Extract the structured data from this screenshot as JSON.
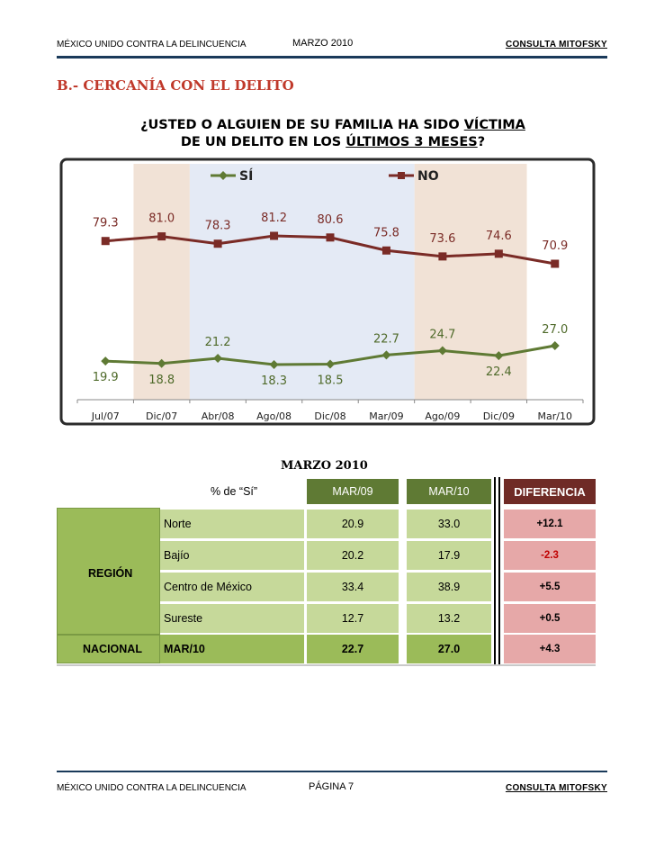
{
  "header": {
    "left": "MÉXICO UNIDO CONTRA LA DELINCUENCIA",
    "center": "MARZO 2010",
    "right": "CONSULTA MITOFSKY"
  },
  "section_title": "B.- CERCANÍA CON EL DELITO",
  "question": {
    "line1_pre": "¿USTED O ALGUIEN DE SU FAMILIA HA SIDO ",
    "line1_u": "VÍCTIMA",
    "line2_pre": "DE UN DELITO EN LOS ",
    "line2_u": "ÚLTIMOS 3 MESES",
    "line2_post": "?"
  },
  "chart_data": {
    "type": "line",
    "categories": [
      "Jul/07",
      "Dic/07",
      "Abr/08",
      "Ago/08",
      "Dic/08",
      "Mar/09",
      "Ago/09",
      "Dic/09",
      "Mar/10"
    ],
    "series": [
      {
        "name": "SÍ",
        "values": [
          19.9,
          18.8,
          21.2,
          18.3,
          18.5,
          22.7,
          24.7,
          22.4,
          27.0
        ],
        "labels": [
          "19.9",
          "18.8",
          "21.2",
          "18.3",
          "18.5",
          "22.7",
          "24.7",
          "22.4",
          "27.0"
        ],
        "color": "#5f7a34"
      },
      {
        "name": "NO",
        "values": [
          79.3,
          81.0,
          78.3,
          81.2,
          80.6,
          75.8,
          73.6,
          74.6,
          70.9
        ],
        "labels": [
          "79.3",
          "81.0",
          "78.3",
          "81.2",
          "80.6",
          "75.8",
          "73.6",
          "74.6",
          "70.9"
        ],
        "color": "#7a2b26"
      }
    ],
    "background_bands": [
      "#f1e2d6",
      "#e4eaf5",
      "#f1e2d6"
    ],
    "legend_position": "top",
    "grid": false
  },
  "table": {
    "title": "MARZO 2010",
    "subtitle": "% de “Sí”",
    "col_headers": [
      "MAR/09",
      "MAR/10",
      "DIFERENCIA"
    ],
    "group_label": "REGIÓN",
    "rows": [
      {
        "label": "Norte",
        "mar09": "20.9",
        "mar10": "33.0",
        "diff": "+12.1"
      },
      {
        "label": "Bajío",
        "mar09": "20.2",
        "mar10": "17.9",
        "diff": "-2.3"
      },
      {
        "label": "Centro de México",
        "mar09": "33.4",
        "mar10": "38.9",
        "diff": "+5.5"
      },
      {
        "label": "Sureste",
        "mar09": "12.7",
        "mar10": "13.2",
        "diff": "+0.5"
      }
    ],
    "national": {
      "label": "NACIONAL",
      "period": "MAR/10",
      "mar09": "22.7",
      "mar10": "27.0",
      "diff": "+4.3"
    }
  },
  "footer": {
    "left": "MÉXICO UNIDO CONTRA LA DELINCUENCIA",
    "center": "PÁGINA 7",
    "right": "CONSULTA MITOFSKY"
  },
  "colors": {
    "header_rule": "#1a3a5a",
    "section_red": "#c0392b",
    "olive_dark": "#5f7a34",
    "olive_light": "#c6d99a",
    "olive_mid": "#9bbb59",
    "maroon": "#6f2b26",
    "pink": "#e6a8a8"
  }
}
